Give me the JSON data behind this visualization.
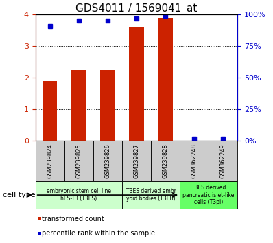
{
  "title": "GDS4011 / 1569041_at",
  "samples": [
    "GSM239824",
    "GSM239825",
    "GSM239826",
    "GSM239827",
    "GSM239828",
    "GSM362248",
    "GSM362249"
  ],
  "red_values": [
    1.9,
    2.25,
    2.25,
    3.6,
    3.9,
    0.0,
    0.0
  ],
  "blue_values": [
    91,
    95,
    95,
    97,
    99,
    2,
    2
  ],
  "ylim_left": [
    0,
    4
  ],
  "ylim_right": [
    0,
    100
  ],
  "yticks_left": [
    0,
    1,
    2,
    3,
    4
  ],
  "yticks_right": [
    0,
    25,
    50,
    75,
    100
  ],
  "ytick_labels_right": [
    "0%",
    "25%",
    "50%",
    "75%",
    "100%"
  ],
  "bar_color": "#cc2200",
  "dot_color": "#0000cc",
  "bar_width": 0.5,
  "left_tick_color": "#cc2200",
  "right_tick_color": "#0000cc",
  "group_boundaries": [
    {
      "start": 0,
      "end": 2,
      "label": "embryonic stem cell line\nhES-T3 (T3ES)",
      "color": "#ccffcc"
    },
    {
      "start": 3,
      "end": 4,
      "label": "T3ES derived embr\nyoid bodies (T3EB)",
      "color": "#ccffcc"
    },
    {
      "start": 5,
      "end": 6,
      "label": "T3ES derived\npancreatic islet-like\ncells (T3pi)",
      "color": "#66ff66"
    }
  ],
  "legend_red_label": "transformed count",
  "legend_blue_label": "percentile rank within the sample",
  "cell_type_label": "cell type",
  "sample_box_color": "#cccccc"
}
